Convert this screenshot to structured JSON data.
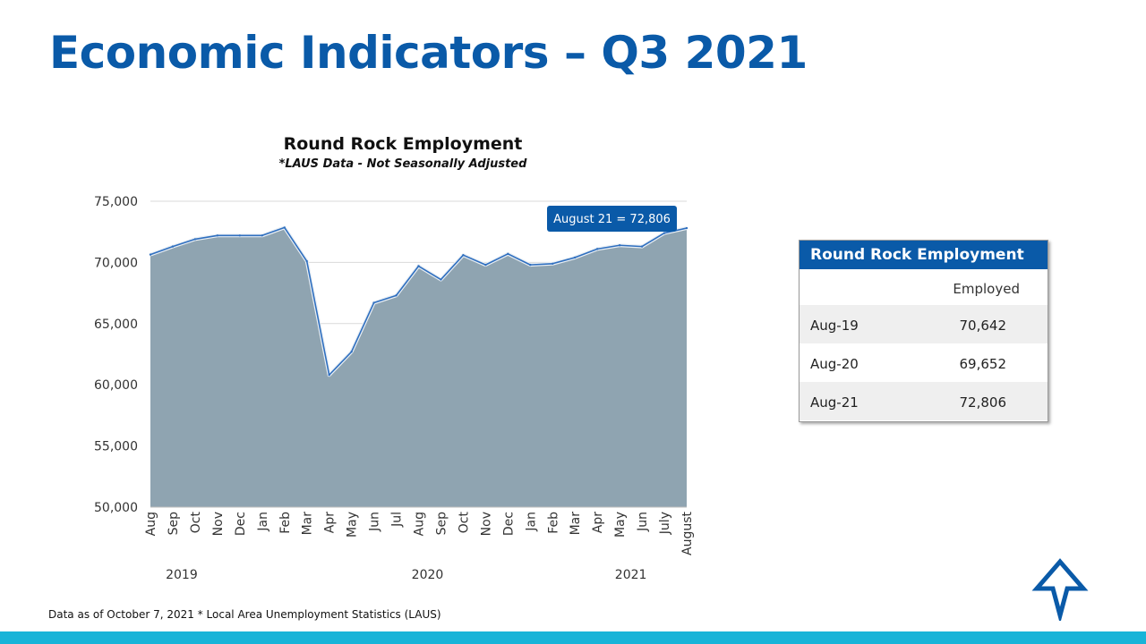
{
  "slide": {
    "title": "Economic Indicators – Q3 2021",
    "footnote": "Data as of October 7, 2021 * Local Area Unemployment Statistics (LAUS)"
  },
  "chart_data": {
    "type": "area",
    "title": "Round Rock Employment",
    "subtitle": "*LAUS Data - Not Seasonally Adjusted",
    "xlabel": "",
    "ylabel": "",
    "categories": [
      "Aug",
      "Sep",
      "Oct",
      "Nov",
      "Dec",
      "Jan",
      "Feb",
      "Mar",
      "Apr",
      "May",
      "Jun",
      "Jul",
      "Aug",
      "Sep",
      "Oct",
      "Nov",
      "Dec",
      "Jan",
      "Feb",
      "Mar",
      "Apr",
      "May",
      "Jun",
      "July",
      "August"
    ],
    "year_labels": [
      "2019",
      "2020",
      "2021"
    ],
    "values": [
      70642,
      71300,
      71900,
      72200,
      72200,
      72200,
      72850,
      70100,
      60800,
      62700,
      66700,
      67300,
      69700,
      68600,
      70600,
      69800,
      70700,
      69800,
      69900,
      70400,
      71100,
      71400,
      71300,
      72400,
      72806
    ],
    "ylim": [
      50000,
      75000
    ],
    "yticks": [
      "50,000",
      "55,000",
      "60,000",
      "65,000",
      "70,000",
      "75,000"
    ],
    "ytick_values": [
      50000,
      55000,
      60000,
      65000,
      70000,
      75000
    ],
    "grid": true,
    "legend": "none",
    "callout": "August 21 = 72,806",
    "colors": {
      "area": "#8fa4b1",
      "line": "#2f6fbf",
      "callout": "#0a5aa8"
    }
  },
  "table": {
    "title": "Round Rock Employment",
    "column_header": "Employed",
    "rows": [
      {
        "label": "Aug-19",
        "value": "70,642"
      },
      {
        "label": "Aug-20",
        "value": "69,652"
      },
      {
        "label": "Aug-21",
        "value": "72,806"
      }
    ]
  },
  "colors": {
    "title": "#0a5aa8",
    "table_header": "#0a5aa8",
    "bottom_bar": "#18b4d8"
  },
  "logo": {
    "icon": "arrow-star-logo-icon"
  }
}
